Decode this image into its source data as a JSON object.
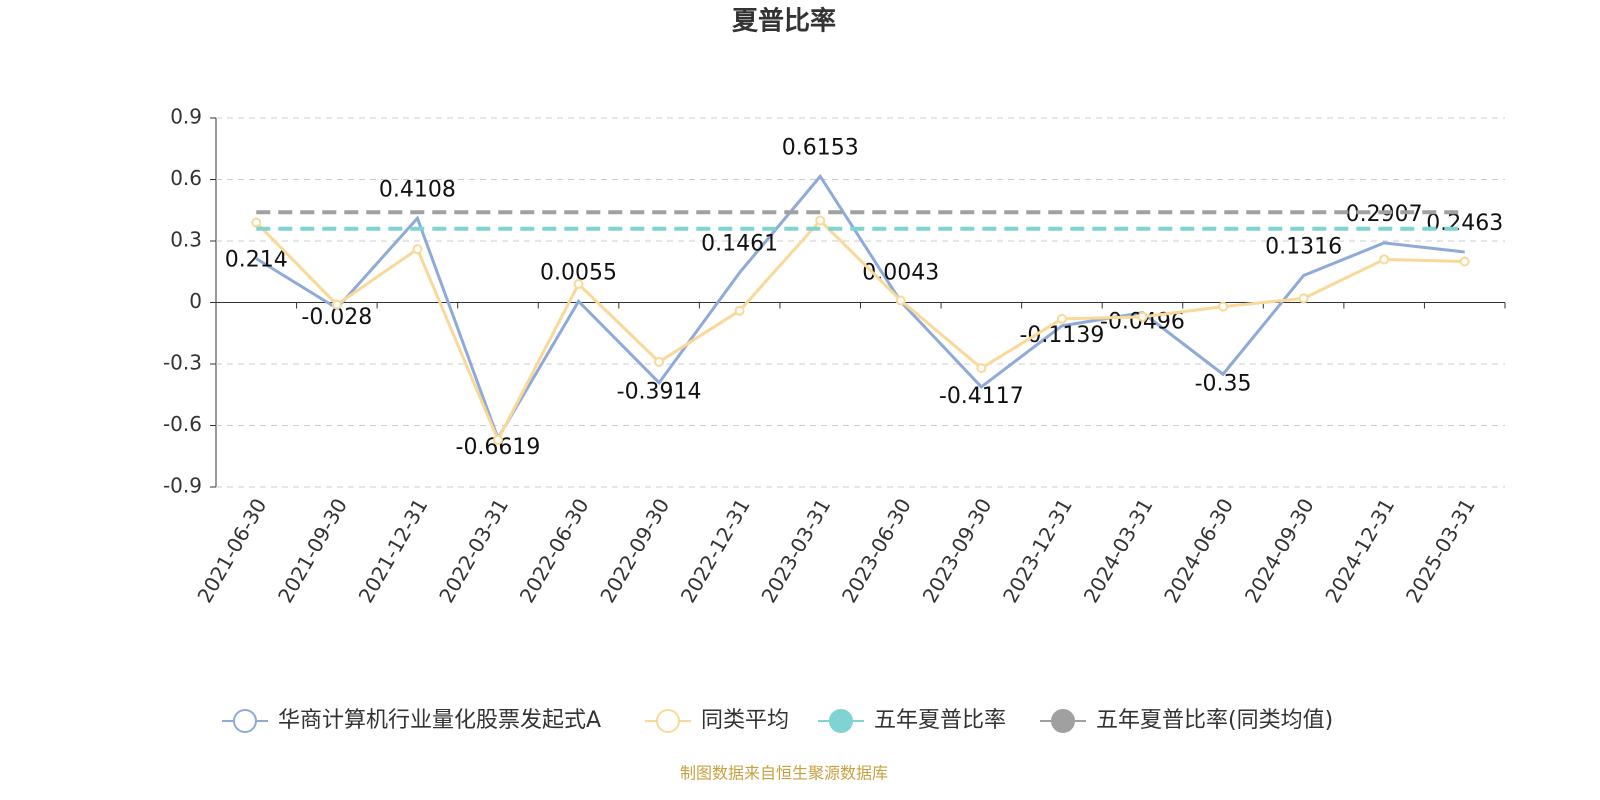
{
  "chart_data": {
    "type": "line",
    "title": "夏普比率",
    "categories": [
      "2021-06-30",
      "2021-09-30",
      "2021-12-31",
      "2022-03-31",
      "2022-06-30",
      "2022-09-30",
      "2022-12-31",
      "2023-03-31",
      "2023-06-30",
      "2023-09-30",
      "2023-12-31",
      "2024-03-31",
      "2024-06-30",
      "2024-09-30",
      "2024-12-31",
      "2025-03-31"
    ],
    "series": [
      {
        "name": "华商计算机行业量化股票发起式A",
        "color": "#8eaad8",
        "values": [
          0.214,
          -0.028,
          0.4108,
          -0.6619,
          0.0055,
          -0.3914,
          0.1461,
          0.6153,
          0.0043,
          -0.4117,
          -0.1139,
          -0.0496,
          -0.35,
          0.1316,
          0.2907,
          0.2463
        ]
      },
      {
        "name": "同类平均",
        "color": "#f9d898",
        "values": [
          0.39,
          -0.01,
          0.26,
          -0.67,
          0.09,
          -0.29,
          -0.04,
          0.4,
          0.01,
          -0.32,
          -0.08,
          -0.07,
          -0.02,
          0.02,
          0.21,
          0.2
        ]
      },
      {
        "name": "五年夏普比率",
        "color": "#7fd3d3",
        "values": [
          0.36,
          0.36,
          0.36,
          0.36,
          0.36,
          0.36,
          0.36,
          0.36,
          0.36,
          0.36,
          0.36,
          0.36,
          0.36,
          0.36,
          0.36,
          0.36
        ]
      },
      {
        "name": "五年夏普比率(同类均值)",
        "color": "#a0a0a0",
        "values": [
          0.44,
          0.44,
          0.44,
          0.44,
          0.44,
          0.44,
          0.44,
          0.44,
          0.44,
          0.44,
          0.44,
          0.44,
          0.44,
          0.44,
          0.44,
          0.44
        ]
      }
    ],
    "ylim": [
      -0.9,
      0.9
    ],
    "yticks": [
      -0.9,
      -0.6,
      -0.3,
      0,
      0.3,
      0.6,
      0.9
    ],
    "grid": true,
    "source": "制图数据来自恒生聚源数据库"
  }
}
